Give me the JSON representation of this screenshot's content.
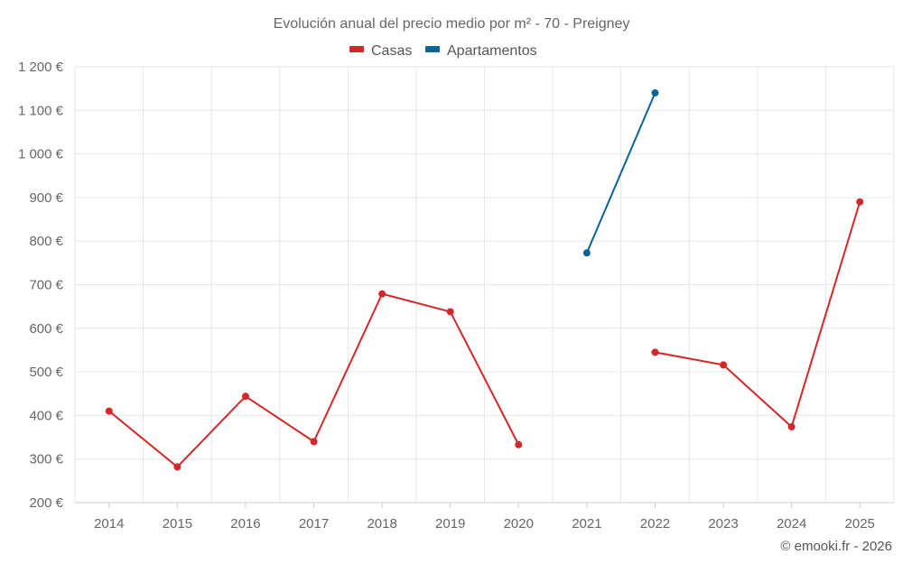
{
  "chart_data": {
    "type": "line",
    "title": "Evolución anual del precio medio por m² - 70 - Preigney",
    "categories": [
      "2014",
      "2015",
      "2016",
      "2017",
      "2018",
      "2019",
      "2020",
      "2021",
      "2022",
      "2023",
      "2024",
      "2025"
    ],
    "ylim": [
      200,
      1200
    ],
    "yticks": [
      200,
      300,
      400,
      500,
      600,
      700,
      800,
      900,
      1000,
      1100,
      1200
    ],
    "ytick_labels": [
      "200 €",
      "300 €",
      "400 €",
      "500 €",
      "600 €",
      "700 €",
      "800 €",
      "900 €",
      "1 000 €",
      "1 100 €",
      "1 200 €"
    ],
    "grid": true,
    "legend_position": "top-center",
    "series": [
      {
        "name": "Casas",
        "color": "#d62728",
        "values": [
          410,
          282,
          444,
          340,
          679,
          638,
          333,
          null,
          545,
          516,
          374,
          890
        ]
      },
      {
        "name": "Apartamentos",
        "color": "#0a6496",
        "values": [
          null,
          null,
          null,
          null,
          null,
          null,
          null,
          773,
          1140,
          null,
          null,
          null
        ]
      }
    ],
    "credit": "© emooki.fr - 2026"
  }
}
